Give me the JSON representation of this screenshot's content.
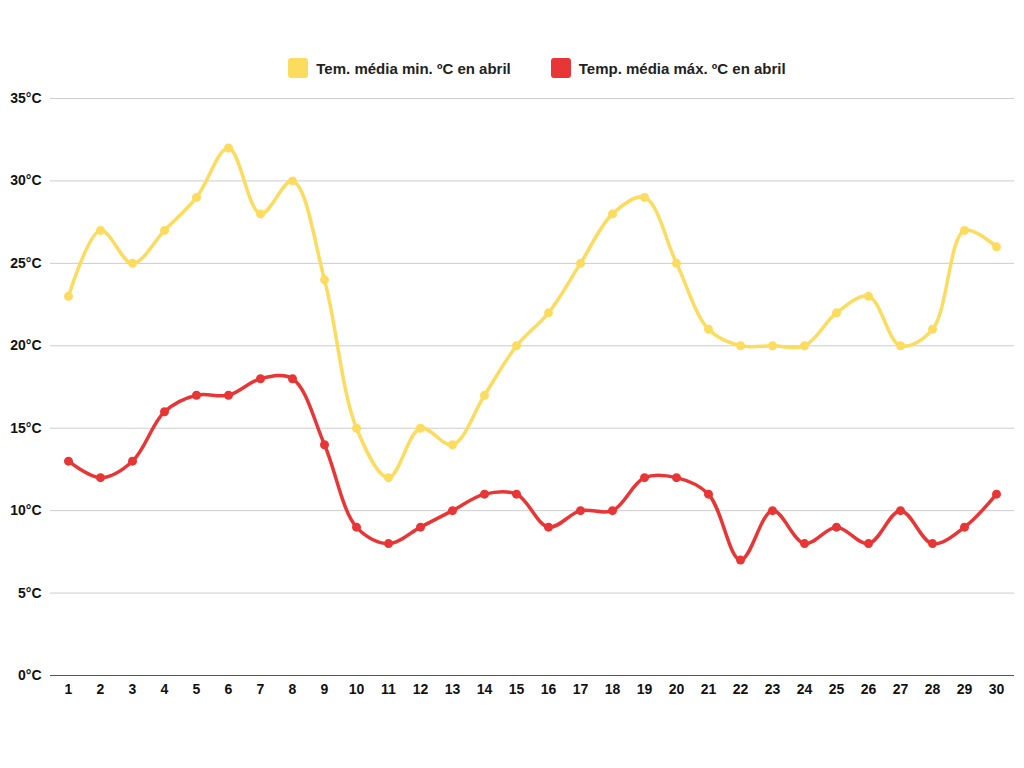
{
  "chart_data": {
    "type": "line",
    "categories": [
      "1",
      "2",
      "3",
      "4",
      "5",
      "6",
      "7",
      "8",
      "9",
      "10",
      "11",
      "12",
      "13",
      "14",
      "15",
      "16",
      "17",
      "18",
      "19",
      "20",
      "21",
      "22",
      "23",
      "24",
      "25",
      "26",
      "27",
      "28",
      "29",
      "30"
    ],
    "series": [
      {
        "name": "Tem. média min. ºC en abril",
        "color": "#fbdc5f",
        "marker": "circle",
        "values": [
          23,
          27,
          25,
          27,
          29,
          32,
          28,
          30,
          24,
          15,
          12,
          15,
          14,
          17,
          20,
          22,
          25,
          28,
          29,
          25,
          21,
          20,
          20,
          20,
          22,
          23,
          20,
          21,
          27,
          26
        ]
      },
      {
        "name": "Temp. média máx. ºC en abril",
        "color": "#e83535",
        "marker": "circle",
        "values": [
          13,
          12,
          13,
          16,
          17,
          17,
          18,
          18,
          14,
          9,
          8,
          9,
          10,
          11,
          11,
          9,
          10,
          10,
          12,
          12,
          11,
          7,
          10,
          8,
          9,
          8,
          10,
          8,
          9,
          11
        ]
      }
    ],
    "ylim": [
      0,
      35
    ],
    "yticks": [
      {
        "value": 0,
        "label": "0°C"
      },
      {
        "value": 5,
        "label": "5°C"
      },
      {
        "value": 10,
        "label": "10°C"
      },
      {
        "value": 15,
        "label": "15°C"
      },
      {
        "value": 20,
        "label": "20°C"
      },
      {
        "value": 25,
        "label": "25°C"
      },
      {
        "value": 30,
        "label": "30°C"
      },
      {
        "value": 35,
        "label": "35°C"
      }
    ],
    "grid": true,
    "legend": "top"
  }
}
